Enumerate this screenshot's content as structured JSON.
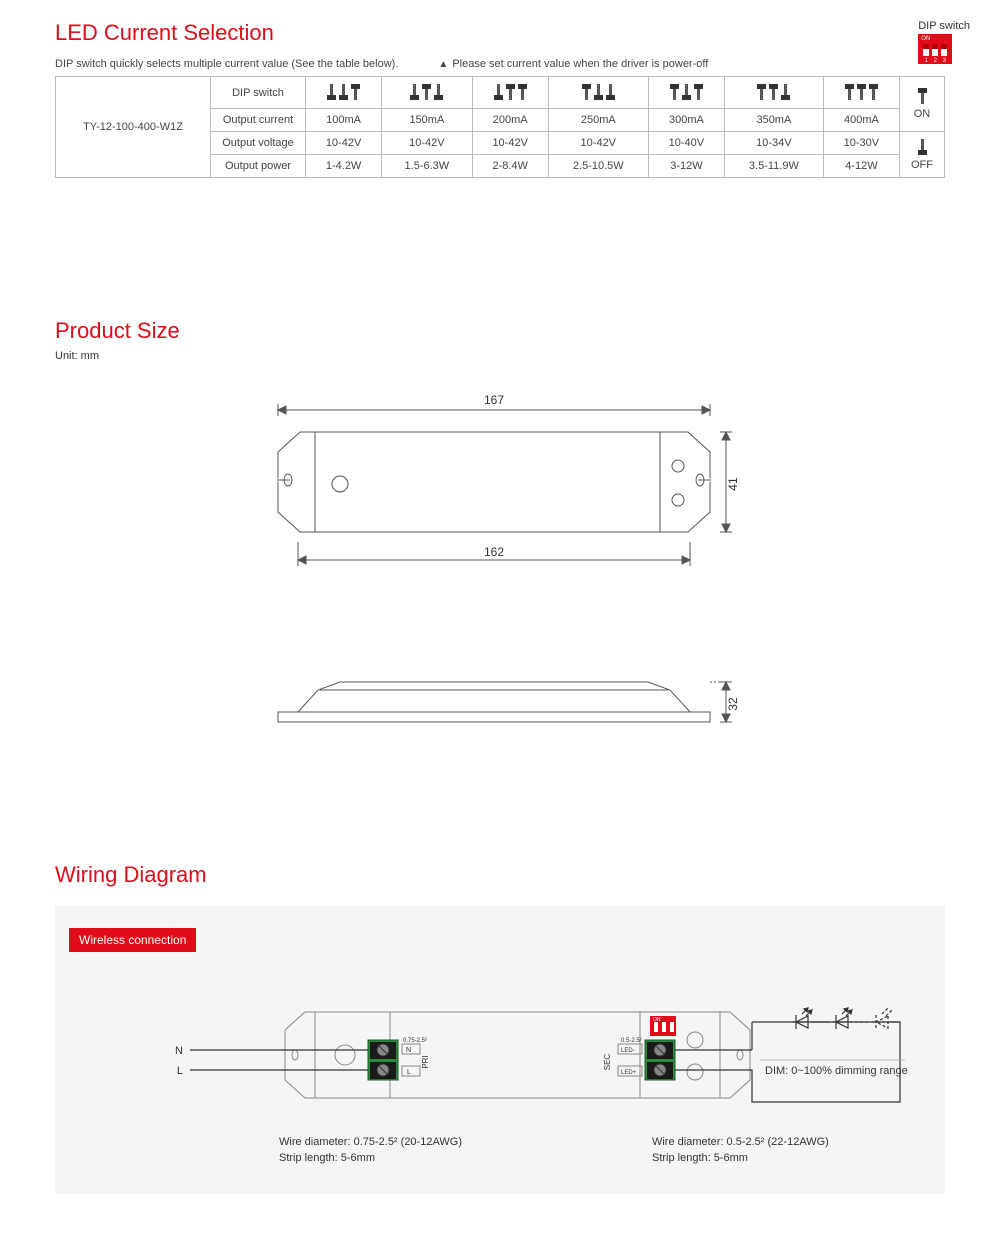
{
  "colors": {
    "accent": "#e20c19",
    "line": "#555555",
    "border": "#bcbcbc",
    "panel": "#f5f5f5",
    "text": "#333333"
  },
  "section1": {
    "title": "LED Current Selection",
    "note": "DIP switch quickly selects multiple current value (See the table below).",
    "warning": "Please set current value when the driver is power-off",
    "dip_label": "DIP switch"
  },
  "table": {
    "model": "TY-12-100-400-W1Z",
    "rows": {
      "r1": "DIP switch",
      "r2": "Output current",
      "r3": "Output voltage",
      "r4": "Output power"
    },
    "columns": [
      {
        "dip": [
          "down",
          "down",
          "up"
        ],
        "current": "100mA",
        "voltage": "10-42V",
        "power": "1-4.2W"
      },
      {
        "dip": [
          "down",
          "up",
          "down"
        ],
        "current": "150mA",
        "voltage": "10-42V",
        "power": "1.5-6.3W"
      },
      {
        "dip": [
          "down",
          "up",
          "up"
        ],
        "current": "200mA",
        "voltage": "10-42V",
        "power": "2-8.4W"
      },
      {
        "dip": [
          "up",
          "down",
          "down"
        ],
        "current": "250mA",
        "voltage": "10-42V",
        "power": "2.5-10.5W"
      },
      {
        "dip": [
          "up",
          "down",
          "up"
        ],
        "current": "300mA",
        "voltage": "10-40V",
        "power": "3-12W"
      },
      {
        "dip": [
          "up",
          "up",
          "down"
        ],
        "current": "350mA",
        "voltage": "10-34V",
        "power": "3.5-11.9W"
      },
      {
        "dip": [
          "up",
          "up",
          "up"
        ],
        "current": "400mA",
        "voltage": "10-30V",
        "power": "4-12W"
      }
    ],
    "legend": {
      "on": "ON",
      "off": "OFF"
    }
  },
  "section2": {
    "title": "Product Size",
    "unit": "Unit: mm",
    "dims": {
      "outer_length": "167",
      "inner_length": "162",
      "width": "41",
      "height": "32"
    },
    "drawing": {
      "stroke": "#555555",
      "stroke_width": 1,
      "fill": "none"
    }
  },
  "section3": {
    "title": "Wiring Diagram",
    "tag": "Wireless connection",
    "labels": {
      "N": "N",
      "L": "L",
      "PRI": "PRI",
      "SEC": "SEC",
      "ledm": "LED-",
      "ledp": "LED+",
      "term_range_pri": "0.75-2.5²",
      "term_range_sec": "0.5-2.5²",
      "dim": "DIM: 0~100% dimming range"
    },
    "notes": {
      "left1": "Wire diameter: 0.75-2.5² (20-12AWG)",
      "left2": "Strip length: 5-6mm",
      "right1": "Wire diameter: 0.5-2.5² (22-12AWG)",
      "right2": "Strip length: 5-6mm"
    },
    "colors": {
      "terminal_green": "#2e8b3d",
      "terminal_dark": "#1a1a1a",
      "dip_red": "#e20c19",
      "outline": "#888888"
    }
  }
}
